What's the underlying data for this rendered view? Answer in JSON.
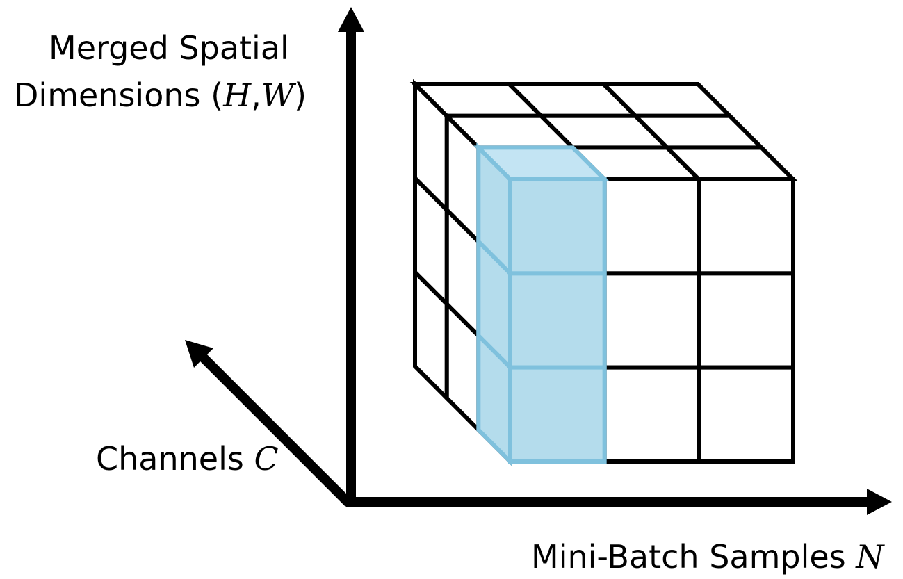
{
  "labels": {
    "y_axis_line1": "Merged Spatial",
    "y_axis_line2_prefix": "Dimensions ",
    "y_axis_open_paren": "(",
    "y_axis_var_h": "H",
    "y_axis_comma": ",",
    "y_axis_var_w": "W",
    "y_axis_close_paren": ")",
    "z_axis_text": "Channels ",
    "z_axis_var": "C",
    "x_axis_text": "Mini-Batch Samples ",
    "x_axis_var": "N"
  },
  "colors": {
    "axis": "#000000",
    "grid": "#000000",
    "highlight_fill": "#b4dcec",
    "highlight_top_fill": "#c3e4f3",
    "highlight_stroke": "#7fc1dd"
  },
  "tensor": {
    "grid_size": 3,
    "highlighted_column": "first mini-batch sample"
  }
}
